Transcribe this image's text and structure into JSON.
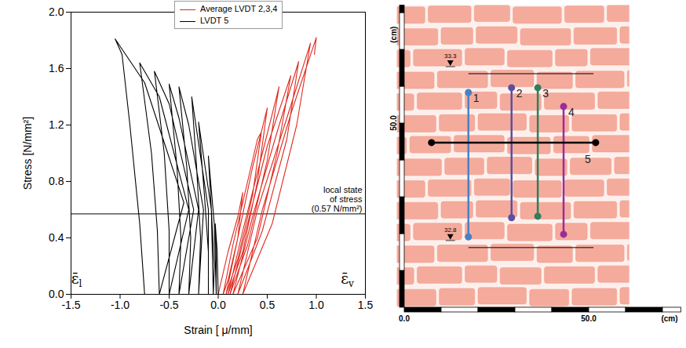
{
  "chart_data": {
    "type": "line",
    "x_label": "Strain [ μ/mm]",
    "y_label": "Stress [N/mm²]",
    "xlim": [
      -1.5,
      1.5
    ],
    "ylim": [
      0,
      2.0
    ],
    "xticks": [
      {
        "value": -1.5,
        "label": "-1.5"
      },
      {
        "value": -1.0,
        "label": "-1.0"
      },
      {
        "value": -0.5,
        "label": "-0.5"
      },
      {
        "value": 0,
        "label": "0.0"
      },
      {
        "value": 0.5,
        "label": "0.5"
      },
      {
        "value": 1.0,
        "label": "1.0"
      },
      {
        "value": 1.5,
        "label": "1.5"
      }
    ],
    "yticks": [
      {
        "value": 0,
        "label": "0.0"
      },
      {
        "value": 0.4,
        "label": "0.4"
      },
      {
        "value": 0.8,
        "label": "0.8"
      },
      {
        "value": 1.2,
        "label": "1.2"
      },
      {
        "value": 1.6,
        "label": "1.6"
      },
      {
        "value": 2.0,
        "label": "2.0"
      }
    ],
    "legend": "top",
    "grid": false,
    "series": [
      {
        "name": "Average LVDT 2,3,4",
        "color": "#e0281e",
        "x": [
          0,
          0.1,
          0.2,
          0.25,
          0.2,
          0.1,
          0.05,
          0.15,
          0.3,
          0.4,
          0.44,
          0.35,
          0.2,
          0.08,
          0.2,
          0.35,
          0.5,
          0.4,
          0.25,
          0.1,
          0.25,
          0.45,
          0.62,
          0.5,
          0.3,
          0.12,
          0.3,
          0.5,
          0.74,
          0.6,
          0.4,
          0.15,
          0.35,
          0.6,
          0.82,
          0.7,
          0.45,
          0.2,
          0.4,
          0.7,
          0.94,
          0.8,
          0.55,
          0.25,
          0.45,
          0.75,
          1.0,
          0.98
        ],
        "values": [
          0,
          0.3,
          0.55,
          0.72,
          0.4,
          0.1,
          0,
          0.35,
          0.8,
          1.1,
          1.15,
          0.7,
          0.25,
          0,
          0.4,
          0.9,
          1.32,
          0.8,
          0.3,
          0,
          0.45,
          1.0,
          1.47,
          0.95,
          0.35,
          0,
          0.5,
          1.05,
          1.55,
          1.0,
          0.4,
          0,
          0.55,
          1.15,
          1.65,
          1.1,
          0.45,
          0,
          0.6,
          1.25,
          1.78,
          1.2,
          0.5,
          0,
          0.6,
          1.3,
          1.82,
          1.7
        ]
      },
      {
        "name": "LVDT 5",
        "color": "#000000",
        "x": [
          0,
          -0.01,
          -0.03,
          -0.02,
          -0.02,
          -0.04,
          -0.1,
          -0.07,
          -0.04,
          -0.05,
          -0.07,
          -0.2,
          -0.14,
          -0.1,
          -0.1,
          -0.1,
          -0.27,
          -0.22,
          -0.18,
          -0.2,
          -0.15,
          -0.3,
          -0.4,
          -0.32,
          -0.28,
          -0.3,
          -0.2,
          -0.4,
          -0.5,
          -0.42,
          -0.38,
          -0.4,
          -0.25,
          -0.5,
          -0.65,
          -0.55,
          -0.5,
          -0.5,
          -0.3,
          -0.6,
          -0.8,
          -0.68,
          -0.62,
          -0.6,
          -0.35,
          -0.75,
          -1.05,
          -0.98,
          -0.9,
          -0.8,
          -0.75
        ],
        "values": [
          0,
          0.3,
          0.5,
          0.25,
          0,
          0.5,
          0.98,
          0.6,
          0.2,
          0,
          0.6,
          1.22,
          0.7,
          0.3,
          0,
          0.6,
          1.4,
          0.9,
          0.4,
          0,
          0.6,
          1.2,
          1.47,
          0.9,
          0.4,
          0,
          0.6,
          1.25,
          1.49,
          0.9,
          0.4,
          0,
          0.6,
          1.35,
          1.58,
          1.0,
          0.45,
          0,
          0.6,
          1.4,
          1.64,
          1.0,
          0.45,
          0,
          0.65,
          1.5,
          1.81,
          1.7,
          1.2,
          0.5,
          0
        ]
      }
    ],
    "annotation": {
      "y": 0.57,
      "text": "local state\nof stress\n(0.57 N/mm²)"
    },
    "corner_labels": [
      {
        "symbol": "ε̄",
        "subscript": "l",
        "x": -1.44,
        "y": 0.05
      },
      {
        "symbol": "ε̄",
        "subscript": "v",
        "x": 1.32,
        "y": 0.05
      }
    ]
  },
  "diagram": {
    "unit": "(cm)",
    "x_extent": 75,
    "y_extent": 82,
    "segment": 10,
    "x_labels": [
      {
        "value": 0,
        "label": "0.0"
      },
      {
        "value": 50,
        "label": "50.0"
      }
    ],
    "y_labels": [
      {
        "value": 50,
        "label": "50.0"
      }
    ],
    "levels": [
      {
        "label": "33.3",
        "y": 63.4,
        "x1": 17.4,
        "x2": 51.3,
        "label_x": 12.5
      },
      {
        "label": "32.8",
        "y": 16.2,
        "x1": 17.4,
        "x2": 51.3,
        "label_x": 12.5
      }
    ],
    "sensors": [
      {
        "label": "1",
        "color": "#4a80c4",
        "x1": 17.4,
        "y1": 58.3,
        "x2": 17.4,
        "y2": 19.1
      },
      {
        "label": "2",
        "color": "#5b4fa0",
        "x1": 29.1,
        "y1": 59.6,
        "x2": 29.1,
        "y2": 24.3
      },
      {
        "label": "3",
        "color": "#2f7e5c",
        "x1": 36.2,
        "y1": 59.6,
        "x2": 36.2,
        "y2": 24.7
      },
      {
        "label": "4",
        "color": "#9c2c9c",
        "x1": 43.2,
        "y1": 54.5,
        "x2": 43.2,
        "y2": 19.8
      },
      {
        "label": "5",
        "color": "#000000",
        "x1": 7.4,
        "y1": 44.7,
        "x2": 51.9,
        "y2": 44.7
      }
    ]
  }
}
